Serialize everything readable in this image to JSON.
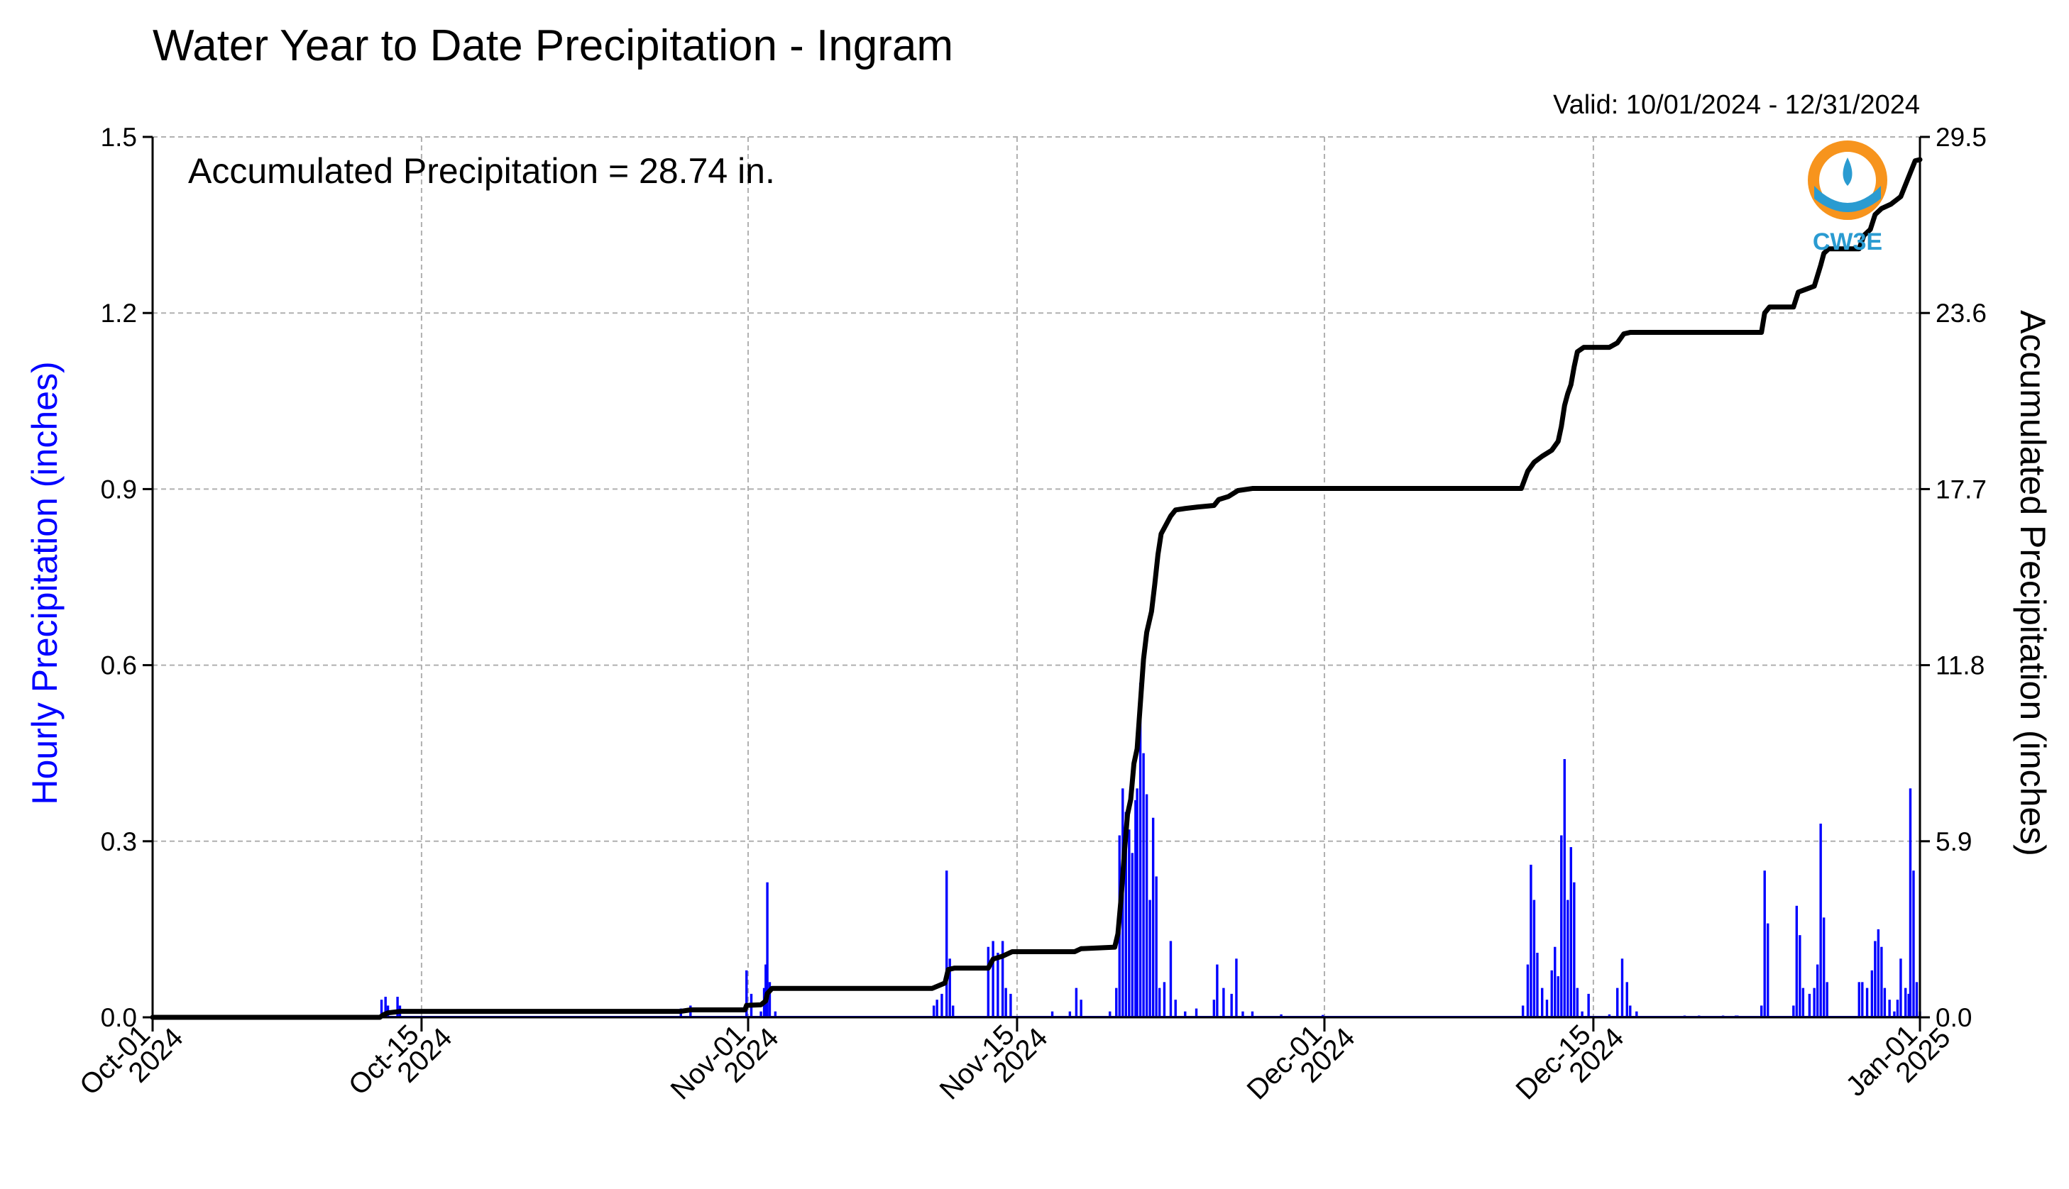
{
  "colors": {
    "bar": "#0000ff",
    "line": "#000000",
    "grid": "#b0b0b0",
    "left_axis_title": "#0000ff",
    "logo_orange": "#f7941d",
    "logo_blue": "#2a9bd1",
    "logo_text": "#2a9bd1"
  },
  "chart_data": {
    "type": "bar",
    "title": "Water Year to Date Precipitation - Ingram",
    "subtitle": "Valid: 10/01/2024 - 12/31/2024",
    "annotation": "Accumulated Precipitation = 28.74 in.",
    "logo_text": "CW3E",
    "ylabel": "Hourly Precipitation (inches)",
    "y2label": "Accumulated Precipitation (inches)",
    "ylim": [
      0,
      1.5
    ],
    "y2lim": [
      0,
      29.5
    ],
    "yticks": [
      "0.0",
      "0.3",
      "0.6",
      "0.9",
      "1.2",
      "1.5"
    ],
    "y2ticks": [
      "0.0",
      "5.9",
      "11.8",
      "17.7",
      "23.6",
      "29.5"
    ],
    "xlim": [
      "2024-10-01",
      "2025-01-01"
    ],
    "xticks": [
      {
        "date": "2024-10-01",
        "line1": "Oct-01",
        "line2": "2024"
      },
      {
        "date": "2024-10-15",
        "line1": "Oct-15",
        "line2": "2024"
      },
      {
        "date": "2024-11-01",
        "line1": "Nov-01",
        "line2": "2024"
      },
      {
        "date": "2024-11-15",
        "line1": "Nov-15",
        "line2": "2024"
      },
      {
        "date": "2024-12-01",
        "line1": "Dec-01",
        "line2": "2024"
      },
      {
        "date": "2024-12-15",
        "line1": "Dec-15",
        "line2": "2024"
      },
      {
        "date": "2025-01-01",
        "line1": "Jan-01",
        "line2": "2025"
      }
    ],
    "grid": true,
    "series": [
      {
        "kind": "bar",
        "axis": "left",
        "points": [
          [
            "2024-10-12T22:00",
            0.03
          ],
          [
            "2024-10-13T03:00",
            0.035
          ],
          [
            "2024-10-13T06:00",
            0.02
          ],
          [
            "2024-10-13T18:00",
            0.035
          ],
          [
            "2024-10-13T21:00",
            0.02
          ],
          [
            "2024-10-28T12:00",
            0.015
          ],
          [
            "2024-10-29T00:00",
            0.02
          ],
          [
            "2024-10-31T22:00",
            0.08
          ],
          [
            "2024-11-01T04:00",
            0.04
          ],
          [
            "2024-11-01T16:00",
            0.01
          ],
          [
            "2024-11-01T20:00",
            0.05
          ],
          [
            "2024-11-01T22:00",
            0.09
          ],
          [
            "2024-11-02T00:00",
            0.23
          ],
          [
            "2024-11-02T03:00",
            0.06
          ],
          [
            "2024-11-02T10:00",
            0.01
          ],
          [
            "2024-11-10T16:00",
            0.02
          ],
          [
            "2024-11-10T20:00",
            0.03
          ],
          [
            "2024-11-11T02:00",
            0.04
          ],
          [
            "2024-11-11T08:00",
            0.25
          ],
          [
            "2024-11-11T12:00",
            0.1
          ],
          [
            "2024-11-11T16:00",
            0.02
          ],
          [
            "2024-11-13T12:00",
            0.12
          ],
          [
            "2024-11-13T18:00",
            0.13
          ],
          [
            "2024-11-14T00:00",
            0.11
          ],
          [
            "2024-11-14T06:00",
            0.13
          ],
          [
            "2024-11-14T10:00",
            0.05
          ],
          [
            "2024-11-14T16:00",
            0.04
          ],
          [
            "2024-11-16T20:00",
            0.01
          ],
          [
            "2024-11-17T18:00",
            0.01
          ],
          [
            "2024-11-18T02:00",
            0.05
          ],
          [
            "2024-11-18T08:00",
            0.03
          ],
          [
            "2024-11-19T20:00",
            0.01
          ],
          [
            "2024-11-20T04:00",
            0.05
          ],
          [
            "2024-11-20T08:00",
            0.31
          ],
          [
            "2024-11-20T12:00",
            0.39
          ],
          [
            "2024-11-20T16:00",
            0.35
          ],
          [
            "2024-11-20T20:00",
            0.32
          ],
          [
            "2024-11-21T00:00",
            0.28
          ],
          [
            "2024-11-21T04:00",
            0.37
          ],
          [
            "2024-11-21T06:00",
            0.39
          ],
          [
            "2024-11-21T10:00",
            0.57
          ],
          [
            "2024-11-21T14:00",
            0.45
          ],
          [
            "2024-11-21T18:00",
            0.38
          ],
          [
            "2024-11-21T22:00",
            0.2
          ],
          [
            "2024-11-22T02:00",
            0.34
          ],
          [
            "2024-11-22T06:00",
            0.24
          ],
          [
            "2024-11-22T10:00",
            0.05
          ],
          [
            "2024-11-22T16:00",
            0.06
          ],
          [
            "2024-11-23T00:00",
            0.13
          ],
          [
            "2024-11-23T06:00",
            0.03
          ],
          [
            "2024-11-23T18:00",
            0.01
          ],
          [
            "2024-11-24T08:00",
            0.015
          ],
          [
            "2024-11-25T06:00",
            0.03
          ],
          [
            "2024-11-25T10:00",
            0.09
          ],
          [
            "2024-11-25T18:00",
            0.05
          ],
          [
            "2024-11-26T04:00",
            0.04
          ],
          [
            "2024-11-26T10:00",
            0.1
          ],
          [
            "2024-11-26T18:00",
            0.01
          ],
          [
            "2024-11-27T06:00",
            0.01
          ],
          [
            "2024-11-28T18:00",
            0.005
          ],
          [
            "2024-11-30T22:00",
            0.004
          ],
          [
            "2024-12-11T08:00",
            0.02
          ],
          [
            "2024-12-11T14:00",
            0.09
          ],
          [
            "2024-12-11T18:00",
            0.26
          ],
          [
            "2024-12-11T22:00",
            0.2
          ],
          [
            "2024-12-12T02:00",
            0.11
          ],
          [
            "2024-12-12T08:00",
            0.05
          ],
          [
            "2024-12-12T14:00",
            0.03
          ],
          [
            "2024-12-12T20:00",
            0.08
          ],
          [
            "2024-12-13T00:00",
            0.12
          ],
          [
            "2024-12-13T04:00",
            0.07
          ],
          [
            "2024-12-13T08:00",
            0.31
          ],
          [
            "2024-12-13T12:00",
            0.44
          ],
          [
            "2024-12-13T16:00",
            0.2
          ],
          [
            "2024-12-13T20:00",
            0.29
          ],
          [
            "2024-12-14T00:00",
            0.23
          ],
          [
            "2024-12-14T04:00",
            0.05
          ],
          [
            "2024-12-14T10:00",
            0.01
          ],
          [
            "2024-12-14T18:00",
            0.04
          ],
          [
            "2024-12-15T20:00",
            0.005
          ],
          [
            "2024-12-16T06:00",
            0.05
          ],
          [
            "2024-12-16T12:00",
            0.1
          ],
          [
            "2024-12-16T18:00",
            0.06
          ],
          [
            "2024-12-16T22:00",
            0.02
          ],
          [
            "2024-12-17T06:00",
            0.01
          ],
          [
            "2024-12-19T18:00",
            0.003
          ],
          [
            "2024-12-20T12:00",
            0.003
          ],
          [
            "2024-12-21T18:00",
            0.003
          ],
          [
            "2024-12-22T10:00",
            0.003
          ],
          [
            "2024-12-22T12:00",
            0.003
          ],
          [
            "2024-12-23T18:00",
            0.02
          ],
          [
            "2024-12-23T22:00",
            0.25
          ],
          [
            "2024-12-24T02:00",
            0.16
          ],
          [
            "2024-12-25T10:00",
            0.02
          ],
          [
            "2024-12-25T14:00",
            0.19
          ],
          [
            "2024-12-25T18:00",
            0.14
          ],
          [
            "2024-12-25T22:00",
            0.05
          ],
          [
            "2024-12-26T06:00",
            0.04
          ],
          [
            "2024-12-26T12:00",
            0.05
          ],
          [
            "2024-12-26T16:00",
            0.09
          ],
          [
            "2024-12-26T20:00",
            0.33
          ],
          [
            "2024-12-27T00:00",
            0.17
          ],
          [
            "2024-12-27T04:00",
            0.06
          ],
          [
            "2024-12-28T20:00",
            0.06
          ],
          [
            "2024-12-29T00:00",
            0.06
          ],
          [
            "2024-12-29T06:00",
            0.05
          ],
          [
            "2024-12-29T12:00",
            0.08
          ],
          [
            "2024-12-29T16:00",
            0.13
          ],
          [
            "2024-12-29T20:00",
            0.15
          ],
          [
            "2024-12-30T00:00",
            0.12
          ],
          [
            "2024-12-30T04:00",
            0.05
          ],
          [
            "2024-12-30T10:00",
            0.03
          ],
          [
            "2024-12-30T16:00",
            0.01
          ],
          [
            "2024-12-30T20:00",
            0.03
          ],
          [
            "2024-12-31T00:00",
            0.1
          ],
          [
            "2024-12-31T06:00",
            0.05
          ],
          [
            "2024-12-31T10:00",
            0.04
          ],
          [
            "2024-12-31T12:00",
            0.39
          ],
          [
            "2024-12-31T16:00",
            0.25
          ],
          [
            "2024-12-31T20:00",
            0.06
          ],
          [
            "2025-01-01T00:00",
            0.01
          ]
        ]
      },
      {
        "kind": "line",
        "axis": "right",
        "points": [
          [
            "2024-10-01T00:00",
            0.0
          ],
          [
            "2024-10-12T20:00",
            0.0
          ],
          [
            "2024-10-13T00:00",
            0.08
          ],
          [
            "2024-10-13T06:00",
            0.15
          ],
          [
            "2024-10-13T22:00",
            0.2
          ],
          [
            "2024-10-28T12:00",
            0.2
          ],
          [
            "2024-10-29T00:00",
            0.25
          ],
          [
            "2024-10-31T20:00",
            0.25
          ],
          [
            "2024-10-31T22:00",
            0.4
          ],
          [
            "2024-11-01T16:00",
            0.42
          ],
          [
            "2024-11-01T22:00",
            0.55
          ],
          [
            "2024-11-02T00:00",
            0.8
          ],
          [
            "2024-11-02T06:00",
            0.97
          ],
          [
            "2024-11-10T14:00",
            0.97
          ],
          [
            "2024-11-11T06:00",
            1.15
          ],
          [
            "2024-11-11T10:00",
            1.6
          ],
          [
            "2024-11-11T18:00",
            1.65
          ],
          [
            "2024-11-13T12:00",
            1.65
          ],
          [
            "2024-11-13T18:00",
            1.95
          ],
          [
            "2024-11-14T06:00",
            2.05
          ],
          [
            "2024-11-14T18:00",
            2.2
          ],
          [
            "2024-11-15T12:00",
            2.2
          ],
          [
            "2024-11-18T00:00",
            2.2
          ],
          [
            "2024-11-18T08:00",
            2.3
          ],
          [
            "2024-11-20T02:00",
            2.35
          ],
          [
            "2024-11-20T06:00",
            2.8
          ],
          [
            "2024-11-20T10:00",
            4.0
          ],
          [
            "2024-11-20T14:00",
            5.5
          ],
          [
            "2024-11-20T18:00",
            6.8
          ],
          [
            "2024-11-20T22:00",
            7.3
          ],
          [
            "2024-11-21T02:00",
            8.5
          ],
          [
            "2024-11-21T06:00",
            9.0
          ],
          [
            "2024-11-21T10:00",
            10.5
          ],
          [
            "2024-11-21T14:00",
            12.0
          ],
          [
            "2024-11-21T18:00",
            12.9
          ],
          [
            "2024-11-22T00:00",
            13.6
          ],
          [
            "2024-11-22T04:00",
            14.5
          ],
          [
            "2024-11-22T08:00",
            15.5
          ],
          [
            "2024-11-22T12:00",
            16.2
          ],
          [
            "2024-11-22T18:00",
            16.5
          ],
          [
            "2024-11-23T00:00",
            16.8
          ],
          [
            "2024-11-23T06:00",
            17.0
          ],
          [
            "2024-11-23T18:00",
            17.05
          ],
          [
            "2024-11-24T10:00",
            17.1
          ],
          [
            "2024-11-25T06:00",
            17.15
          ],
          [
            "2024-11-25T12:00",
            17.35
          ],
          [
            "2024-11-26T00:00",
            17.45
          ],
          [
            "2024-11-26T12:00",
            17.65
          ],
          [
            "2024-11-27T06:00",
            17.72
          ],
          [
            "2024-12-11T06:00",
            17.72
          ],
          [
            "2024-12-11T14:00",
            18.3
          ],
          [
            "2024-12-11T22:00",
            18.6
          ],
          [
            "2024-12-12T08:00",
            18.8
          ],
          [
            "2024-12-12T20:00",
            19.0
          ],
          [
            "2024-12-13T04:00",
            19.3
          ],
          [
            "2024-12-13T08:00",
            19.8
          ],
          [
            "2024-12-13T12:00",
            20.5
          ],
          [
            "2024-12-13T16:00",
            20.9
          ],
          [
            "2024-12-13T20:00",
            21.2
          ],
          [
            "2024-12-14T00:00",
            21.8
          ],
          [
            "2024-12-14T04:00",
            22.3
          ],
          [
            "2024-12-14T12:00",
            22.45
          ],
          [
            "2024-12-15T20:00",
            22.45
          ],
          [
            "2024-12-16T06:00",
            22.6
          ],
          [
            "2024-12-16T14:00",
            22.9
          ],
          [
            "2024-12-16T22:00",
            22.95
          ],
          [
            "2024-12-23T18:00",
            22.95
          ],
          [
            "2024-12-23T22:00",
            23.6
          ],
          [
            "2024-12-24T04:00",
            23.8
          ],
          [
            "2024-12-25T10:00",
            23.8
          ],
          [
            "2024-12-25T16:00",
            24.3
          ],
          [
            "2024-12-26T02:00",
            24.4
          ],
          [
            "2024-12-26T12:00",
            24.5
          ],
          [
            "2024-12-26T20:00",
            25.2
          ],
          [
            "2024-12-27T00:00",
            25.6
          ],
          [
            "2024-12-27T06:00",
            25.75
          ],
          [
            "2024-12-28T20:00",
            25.75
          ],
          [
            "2024-12-29T02:00",
            26.2
          ],
          [
            "2024-12-29T10:00",
            26.4
          ],
          [
            "2024-12-29T16:00",
            26.9
          ],
          [
            "2024-12-30T00:00",
            27.1
          ],
          [
            "2024-12-30T12:00",
            27.25
          ],
          [
            "2024-12-31T00:00",
            27.5
          ],
          [
            "2024-12-31T12:00",
            28.3
          ],
          [
            "2024-12-31T18:00",
            28.7
          ],
          [
            "2025-01-01T00:00",
            28.74
          ]
        ]
      }
    ]
  }
}
